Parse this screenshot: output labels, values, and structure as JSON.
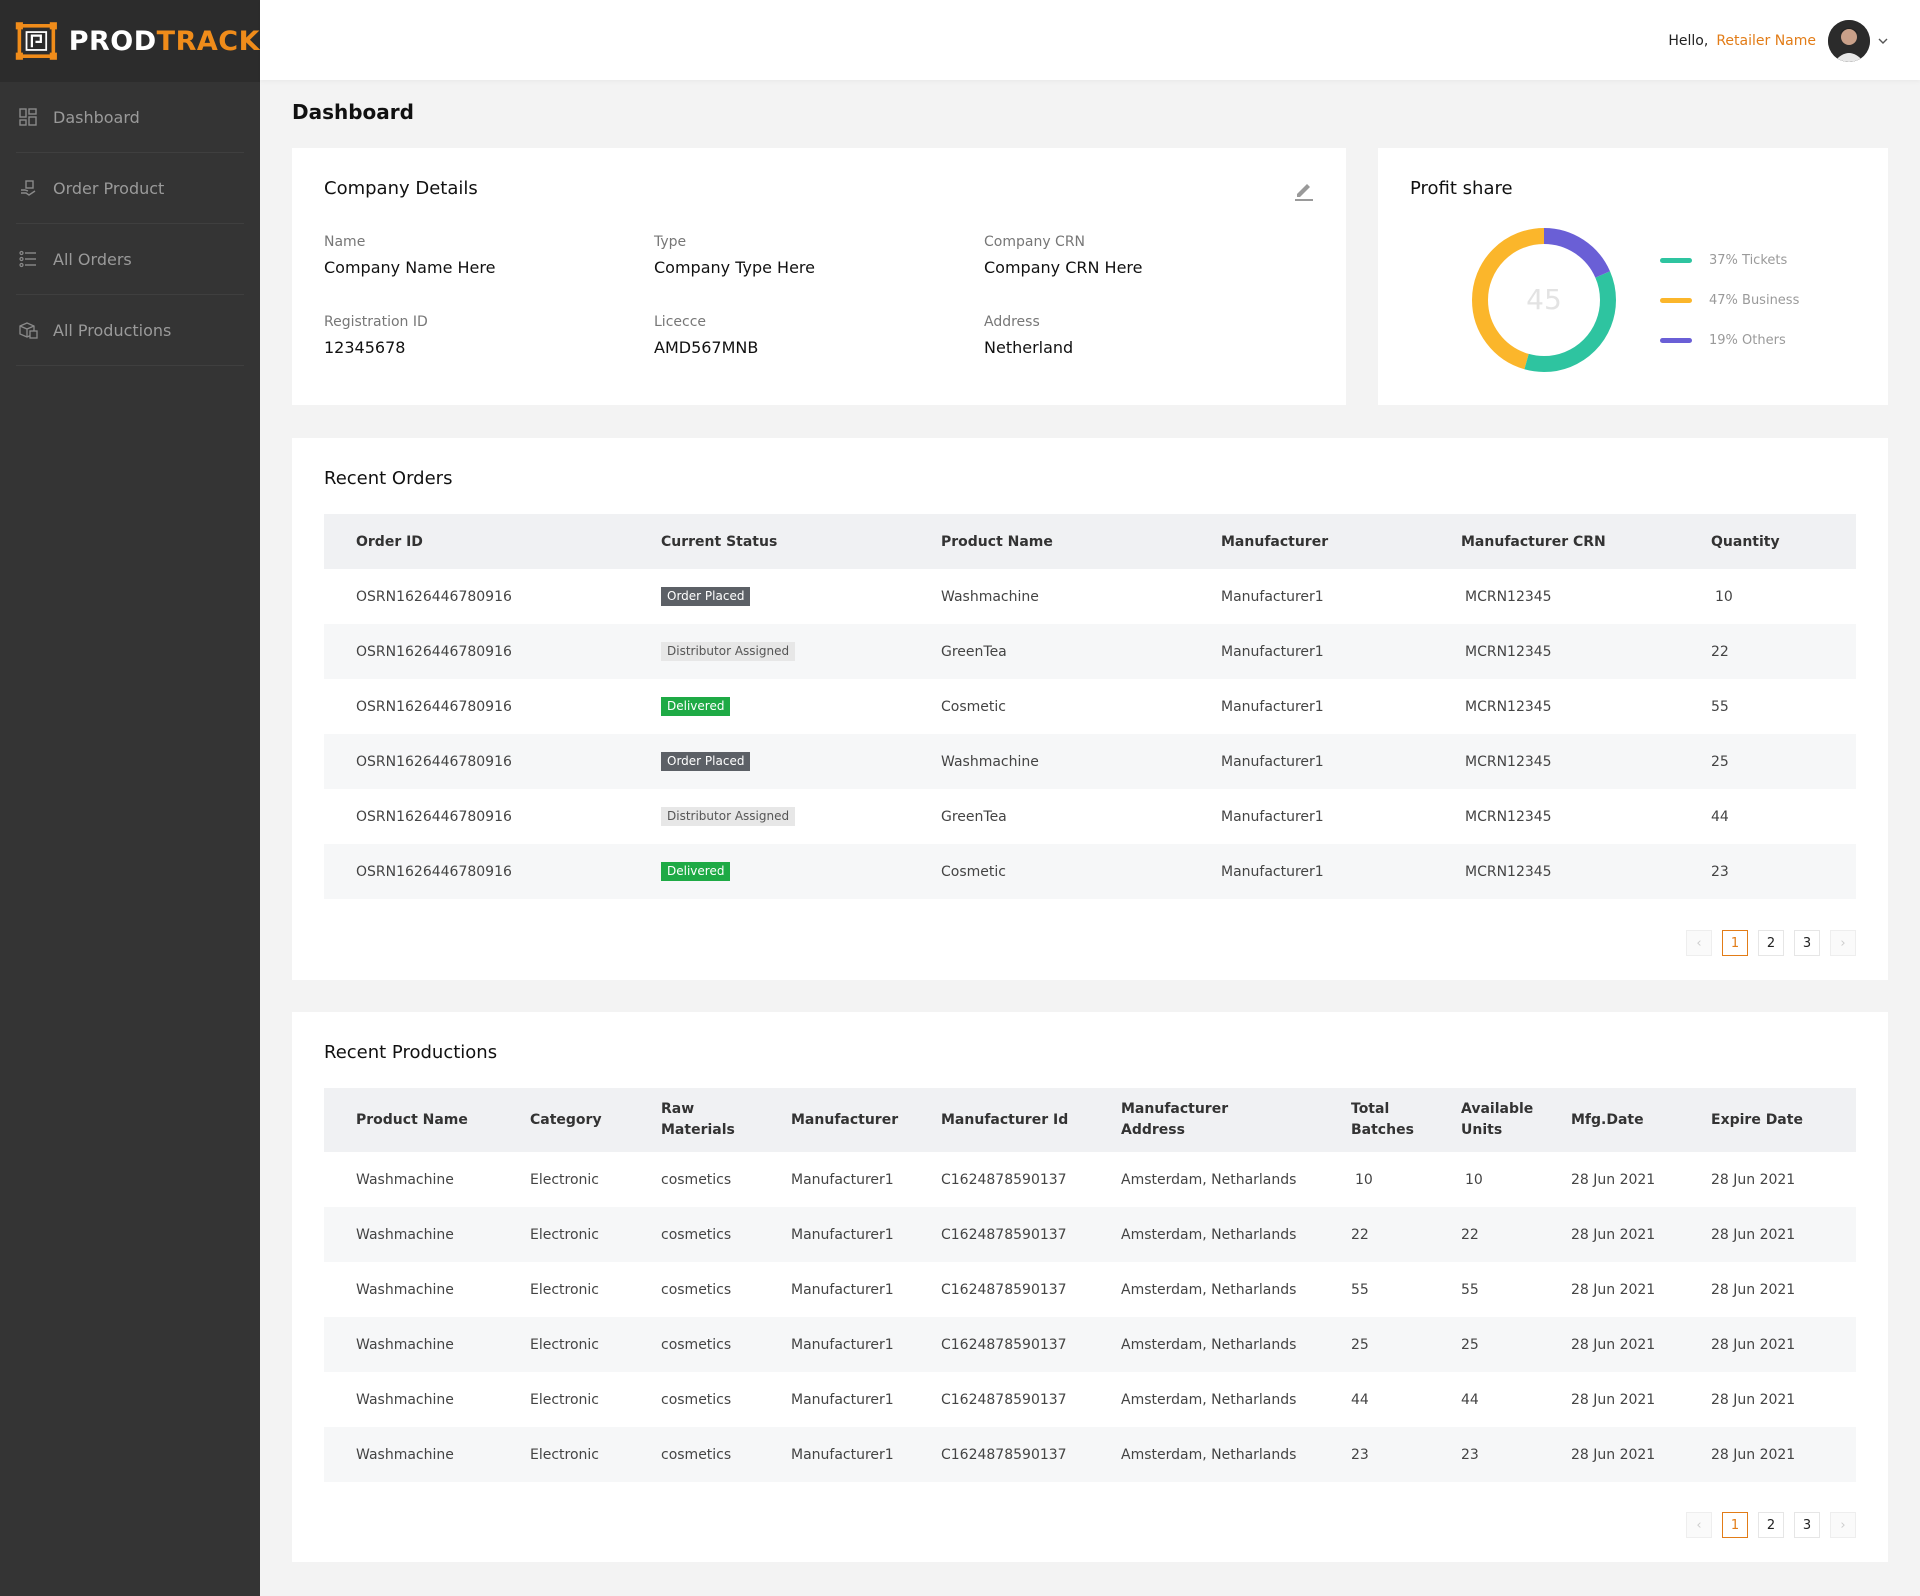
{
  "app": {
    "brand_part1": "PROD",
    "brand_part2": "TRACK",
    "brand_colors": {
      "accent": "#f08c1a",
      "sidebar": "#343434"
    }
  },
  "sidebar": {
    "items": [
      {
        "label": "Dashboard",
        "icon": "dashboard-icon"
      },
      {
        "label": "Order Product",
        "icon": "order-product-icon"
      },
      {
        "label": "All Orders",
        "icon": "list-icon"
      },
      {
        "label": "All Productions",
        "icon": "boxes-icon"
      }
    ]
  },
  "header": {
    "greeting": "Hello,",
    "user_name": "Retailer Name"
  },
  "page": {
    "title": "Dashboard"
  },
  "company": {
    "title": "Company Details",
    "fields": [
      {
        "label": "Name",
        "value": "Company Name Here"
      },
      {
        "label": "Type",
        "value": "Company Type Here"
      },
      {
        "label": "Company CRN",
        "value": "Company CRN Here"
      },
      {
        "label": "Registration ID",
        "value": "12345678"
      },
      {
        "label": "Licecce",
        "value": "AMD567MNB"
      },
      {
        "label": "Address",
        "value": "Netherland"
      }
    ]
  },
  "profit": {
    "title": "Profit share",
    "center_value": "45",
    "legend": [
      {
        "label": "37% Tickets",
        "color": "#2ec4a0",
        "share": 37
      },
      {
        "label": "47% Business",
        "color": "#fbb62b",
        "share": 47
      },
      {
        "label": "19% Others",
        "color": "#6a5fd6",
        "share": 19
      }
    ]
  },
  "orders": {
    "title": "Recent Orders",
    "columns": [
      "Order ID",
      "Current Status",
      "Product Name",
      "Manufacturer",
      "Manufacturer CRN",
      "Quantity"
    ],
    "rows": [
      {
        "id": "OSRN1626446780916",
        "status": "Order Placed",
        "product": "Washmachine",
        "manufacturer": "Manufacturer1",
        "crn": "MCRN12345",
        "qty": "10"
      },
      {
        "id": "OSRN1626446780916",
        "status": "Distributor Assigned",
        "product": "GreenTea",
        "manufacturer": "Manufacturer1",
        "crn": "MCRN12345",
        "qty": "22"
      },
      {
        "id": "OSRN1626446780916",
        "status": "Delivered",
        "product": "Cosmetic",
        "manufacturer": "Manufacturer1",
        "crn": "MCRN12345",
        "qty": "55"
      },
      {
        "id": "OSRN1626446780916",
        "status": "Order Placed",
        "product": "Washmachine",
        "manufacturer": "Manufacturer1",
        "crn": "MCRN12345",
        "qty": "25"
      },
      {
        "id": "OSRN1626446780916",
        "status": "Distributor Assigned",
        "product": "GreenTea",
        "manufacturer": "Manufacturer1",
        "crn": "MCRN12345",
        "qty": "44"
      },
      {
        "id": "OSRN1626446780916",
        "status": "Delivered",
        "product": "Cosmetic",
        "manufacturer": "Manufacturer1",
        "crn": "MCRN12345",
        "qty": "23"
      }
    ],
    "pages": [
      "1",
      "2",
      "3"
    ],
    "active_page": "1"
  },
  "productions": {
    "title": "Recent Productions",
    "columns": [
      "Product Name",
      "Category",
      "Raw Materials",
      "Manufacturer",
      "Manufacturer Id",
      "Manufacturer Address",
      "Total Batches",
      "Available Units",
      "Mfg.Date",
      "Expire Date"
    ],
    "rows": [
      {
        "product": "Washmachine",
        "category": "Electronic",
        "raw": "cosmetics",
        "manufacturer": "Manufacturer1",
        "mid": "C1624878590137",
        "address": "Amsterdam, Netharlands",
        "batches": "10",
        "units": "10",
        "mfg": "28 Jun 2021",
        "exp": "28 Jun 2021"
      },
      {
        "product": "Washmachine",
        "category": "Electronic",
        "raw": "cosmetics",
        "manufacturer": "Manufacturer1",
        "mid": "C1624878590137",
        "address": "Amsterdam, Netharlands",
        "batches": "22",
        "units": "22",
        "mfg": "28 Jun 2021",
        "exp": "28 Jun 2021"
      },
      {
        "product": "Washmachine",
        "category": "Electronic",
        "raw": "cosmetics",
        "manufacturer": "Manufacturer1",
        "mid": "C1624878590137",
        "address": "Amsterdam, Netharlands",
        "batches": "55",
        "units": "55",
        "mfg": "28 Jun 2021",
        "exp": "28 Jun 2021"
      },
      {
        "product": "Washmachine",
        "category": "Electronic",
        "raw": "cosmetics",
        "manufacturer": "Manufacturer1",
        "mid": "C1624878590137",
        "address": "Amsterdam, Netharlands",
        "batches": "25",
        "units": "25",
        "mfg": "28 Jun 2021",
        "exp": "28 Jun 2021"
      },
      {
        "product": "Washmachine",
        "category": "Electronic",
        "raw": "cosmetics",
        "manufacturer": "Manufacturer1",
        "mid": "C1624878590137",
        "address": "Amsterdam, Netharlands",
        "batches": "44",
        "units": "44",
        "mfg": "28 Jun 2021",
        "exp": "28 Jun 2021"
      },
      {
        "product": "Washmachine",
        "category": "Electronic",
        "raw": "cosmetics",
        "manufacturer": "Manufacturer1",
        "mid": "C1624878590137",
        "address": "Amsterdam, Netharlands",
        "batches": "23",
        "units": "23",
        "mfg": "28 Jun 2021",
        "exp": "28 Jun 2021"
      }
    ],
    "pages": [
      "1",
      "2",
      "3"
    ],
    "active_page": "1"
  },
  "pager": {
    "prev": "‹",
    "next": "›"
  }
}
